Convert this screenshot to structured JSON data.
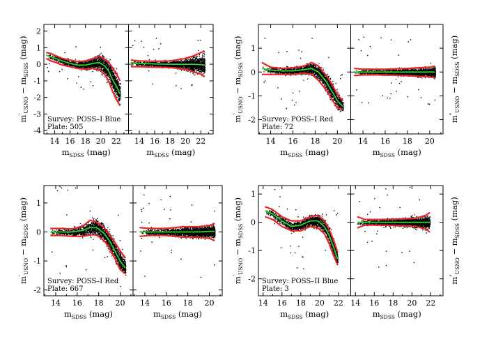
{
  "figure": {
    "description_none": "",
    "colors": {
      "points": "#000000",
      "red": "#e8262a",
      "green": "#2fd42f",
      "frame": "#000000"
    }
  },
  "chart_data": [
    {
      "type": "scatter",
      "panel": "top-left",
      "survey_label": "Survey: POSS–I Blue",
      "plate_label": "Plate:   505",
      "ylabel_left": {
        "main": "m",
        "sup": "'",
        "sub": "USNO",
        "minus": " − m",
        "sub2": "SDSS",
        "unit": " (mag)"
      },
      "ylabel_right": {
        "main": "m",
        "sup": "\"",
        "sub": "USNO",
        "minus": " − m",
        "sub2": "SDSS",
        "unit": " (mag)"
      },
      "xlabel": {
        "main": "m",
        "sub": "SDSS",
        "unit": " (mag)"
      },
      "xlim": [
        12.6,
        23.6
      ],
      "ylim": [
        -4.2,
        2.4
      ],
      "xticks": [
        14,
        16,
        18,
        20,
        22
      ],
      "yticks": [
        -4,
        -3,
        -2,
        -1,
        0,
        1,
        2
      ],
      "left": {
        "x": [
          12.9,
          13.5,
          14.2,
          15.0,
          16.0,
          17.0,
          18.0,
          19.0,
          19.8,
          20.5,
          21.0,
          21.5,
          22.0,
          22.5
        ],
        "green": [
          0.55,
          0.45,
          0.35,
          0.2,
          0.05,
          -0.05,
          -0.05,
          0.05,
          0.1,
          -0.1,
          -0.4,
          -0.9,
          -1.3,
          -1.8
        ],
        "red_upper": [
          0.7,
          0.65,
          0.5,
          0.35,
          0.25,
          0.15,
          0.2,
          0.35,
          0.5,
          0.3,
          0.1,
          -0.2,
          -0.55,
          -1.0
        ],
        "red_lower": [
          0.35,
          0.2,
          0.1,
          -0.05,
          -0.15,
          -0.25,
          -0.3,
          -0.25,
          -0.35,
          -0.6,
          -1.0,
          -1.6,
          -2.1,
          -2.5
        ],
        "spread": [
          0.12,
          0.12,
          0.13,
          0.15,
          0.18,
          0.2,
          0.22,
          0.28,
          0.35,
          0.42,
          0.5,
          0.55,
          0.55,
          0.55
        ]
      },
      "right": {
        "x": [
          12.9,
          14.0,
          16.0,
          18.0,
          20.0,
          21.0,
          22.0,
          22.5
        ],
        "green": [
          0.1,
          0.05,
          0.02,
          0.0,
          0.0,
          0.0,
          -0.02,
          -0.05
        ],
        "red_upper": [
          0.25,
          0.2,
          0.18,
          0.2,
          0.35,
          0.5,
          0.7,
          0.8
        ],
        "red_lower": [
          -0.15,
          -0.15,
          -0.18,
          -0.2,
          -0.3,
          -0.45,
          -0.6,
          -0.75
        ],
        "spread": [
          0.1,
          0.1,
          0.12,
          0.15,
          0.25,
          0.35,
          0.45,
          0.5
        ]
      }
    },
    {
      "type": "scatter",
      "panel": "top-right",
      "survey_label": "Survey: POSS–I Red",
      "plate_label": "Plate:   72",
      "ylabel_left": {
        "main": "m",
        "sup": "'",
        "sub": "USNO",
        "minus": " − m",
        "sub2": "SDSS",
        "unit": " (mag)"
      },
      "ylabel_right": {
        "main": "m",
        "sup": "\"",
        "sub": "USNO",
        "minus": " − m",
        "sub2": "SDSS",
        "unit": " (mag)"
      },
      "xlabel": {
        "main": "m",
        "sub": "SDSS",
        "unit": " (mag)"
      },
      "xlim": [
        12.9,
        21.2
      ],
      "ylim": [
        -2.6,
        2.0
      ],
      "xticks": [
        14,
        16,
        18,
        20
      ],
      "yticks": [
        -2,
        -1,
        0,
        1
      ],
      "left": {
        "x": [
          13.2,
          14.0,
          15.0,
          16.0,
          17.0,
          17.7,
          18.3,
          19.0,
          19.5,
          20.0,
          20.5
        ],
        "green": [
          0.15,
          0.08,
          0.05,
          0.05,
          0.1,
          0.15,
          0.0,
          -0.4,
          -0.8,
          -1.2,
          -1.45
        ],
        "red_upper": [
          0.4,
          0.2,
          0.15,
          0.18,
          0.25,
          0.4,
          0.25,
          -0.15,
          -0.5,
          -0.95,
          -1.2
        ],
        "red_lower": [
          -0.1,
          -0.1,
          -0.1,
          -0.1,
          -0.05,
          -0.1,
          -0.35,
          -0.75,
          -1.15,
          -1.5,
          -1.55
        ],
        "spread": [
          0.1,
          0.1,
          0.12,
          0.13,
          0.16,
          0.2,
          0.25,
          0.28,
          0.3,
          0.28,
          0.18
        ]
      },
      "right": {
        "x": [
          13.2,
          14.0,
          16.0,
          18.0,
          19.0,
          20.0,
          20.5
        ],
        "green": [
          0.0,
          0.0,
          0.0,
          0.0,
          0.0,
          0.0,
          0.0
        ],
        "red_upper": [
          0.15,
          0.12,
          0.12,
          0.15,
          0.18,
          0.2,
          0.25
        ],
        "red_lower": [
          -0.15,
          -0.12,
          -0.12,
          -0.15,
          -0.18,
          -0.2,
          -0.25
        ],
        "spread": [
          0.08,
          0.08,
          0.1,
          0.12,
          0.14,
          0.16,
          0.18
        ]
      }
    },
    {
      "type": "scatter",
      "panel": "bottom-left",
      "survey_label": "Survey: POSS–I Red",
      "plate_label": "Plate:   667",
      "ylabel_left": {
        "main": "m",
        "sup": "'",
        "sub": "USNO",
        "minus": " − m",
        "sub2": "SDSS",
        "unit": " (mag)"
      },
      "ylabel_right": {
        "main": "m",
        "sup": "\"",
        "sub": "USNO",
        "minus": " − m",
        "sub2": "SDSS",
        "unit": " (mag)"
      },
      "xlabel": {
        "main": "m",
        "sub": "SDSS",
        "unit": " (mag)"
      },
      "xlim": [
        12.9,
        21.2
      ],
      "ylim": [
        -2.2,
        1.6
      ],
      "xticks": [
        14,
        16,
        18,
        20
      ],
      "yticks": [
        -2,
        -1,
        0,
        1
      ],
      "left": {
        "x": [
          13.5,
          14.5,
          15.5,
          16.5,
          17.2,
          17.8,
          18.5,
          19.0,
          19.5,
          20.0,
          20.5
        ],
        "green": [
          0.0,
          0.0,
          0.0,
          0.05,
          0.15,
          0.15,
          -0.05,
          -0.3,
          -0.65,
          -1.0,
          -1.25
        ],
        "red_upper": [
          0.12,
          0.12,
          0.1,
          0.2,
          0.4,
          0.35,
          0.15,
          -0.1,
          -0.35,
          -0.65,
          -0.9
        ],
        "red_lower": [
          -0.12,
          -0.12,
          -0.15,
          -0.15,
          -0.1,
          -0.1,
          -0.3,
          -0.55,
          -0.9,
          -1.3,
          -1.45
        ],
        "spread": [
          0.08,
          0.08,
          0.1,
          0.15,
          0.2,
          0.22,
          0.22,
          0.25,
          0.25,
          0.25,
          0.2
        ]
      },
      "right": {
        "x": [
          13.5,
          14.5,
          16.0,
          17.5,
          19.0,
          20.0,
          20.5
        ],
        "green": [
          0.0,
          0.0,
          0.0,
          0.0,
          0.0,
          0.02,
          0.02
        ],
        "red_upper": [
          0.15,
          0.12,
          0.12,
          0.18,
          0.18,
          0.22,
          0.3
        ],
        "red_lower": [
          -0.15,
          -0.12,
          -0.12,
          -0.18,
          -0.18,
          -0.22,
          -0.3
        ],
        "spread": [
          0.08,
          0.08,
          0.1,
          0.14,
          0.15,
          0.16,
          0.18
        ]
      }
    },
    {
      "type": "scatter",
      "panel": "bottom-right",
      "survey_label": "Survey: POSS–II Blue",
      "plate_label": "Plate:   3",
      "ylabel_left": {
        "main": "m",
        "sup": "'",
        "sub": "USNO",
        "minus": " − m",
        "sub2": "SDSS",
        "unit": " (mag)"
      },
      "ylabel_right": {
        "main": "m",
        "sup": "\"",
        "sub": "USNO",
        "minus": " − m",
        "sub2": "SDSS",
        "unit": " (mag)"
      },
      "xlabel": {
        "main": "m",
        "sub": "SDSS",
        "unit": " (mag)"
      },
      "xlim": [
        13.5,
        23.3
      ],
      "ylim": [
        -2.6,
        1.3
      ],
      "xticks": [
        14,
        16,
        18,
        20,
        22
      ],
      "yticks": [
        -2,
        -1,
        0,
        1
      ],
      "left": {
        "x": [
          14.2,
          15.0,
          16.0,
          17.0,
          18.0,
          19.0,
          19.8,
          20.5,
          21.0,
          21.5,
          21.9
        ],
        "green": [
          0.4,
          0.3,
          0.05,
          -0.15,
          -0.1,
          0.05,
          0.05,
          -0.15,
          -0.45,
          -0.9,
          -1.3
        ],
        "red_upper": [
          0.55,
          0.45,
          0.2,
          0.05,
          0.05,
          0.2,
          0.25,
          0.05,
          -0.25,
          -0.65,
          -1.05
        ],
        "red_lower": [
          0.2,
          0.1,
          -0.15,
          -0.3,
          -0.3,
          -0.15,
          -0.2,
          -0.4,
          -0.75,
          -1.2,
          -1.5
        ],
        "spread": [
          0.1,
          0.1,
          0.12,
          0.14,
          0.14,
          0.16,
          0.18,
          0.18,
          0.2,
          0.2,
          0.18
        ]
      },
      "right": {
        "x": [
          14.2,
          15.0,
          17.0,
          19.0,
          20.5,
          21.5,
          21.9
        ],
        "green": [
          0.0,
          0.0,
          0.0,
          0.0,
          0.0,
          0.0,
          0.0
        ],
        "red_upper": [
          0.2,
          0.1,
          0.1,
          0.12,
          0.15,
          0.25,
          0.35
        ],
        "red_lower": [
          -0.2,
          -0.1,
          -0.1,
          -0.12,
          -0.15,
          -0.25,
          -0.35
        ],
        "spread": [
          0.08,
          0.08,
          0.1,
          0.12,
          0.14,
          0.16,
          0.18
        ]
      }
    }
  ]
}
